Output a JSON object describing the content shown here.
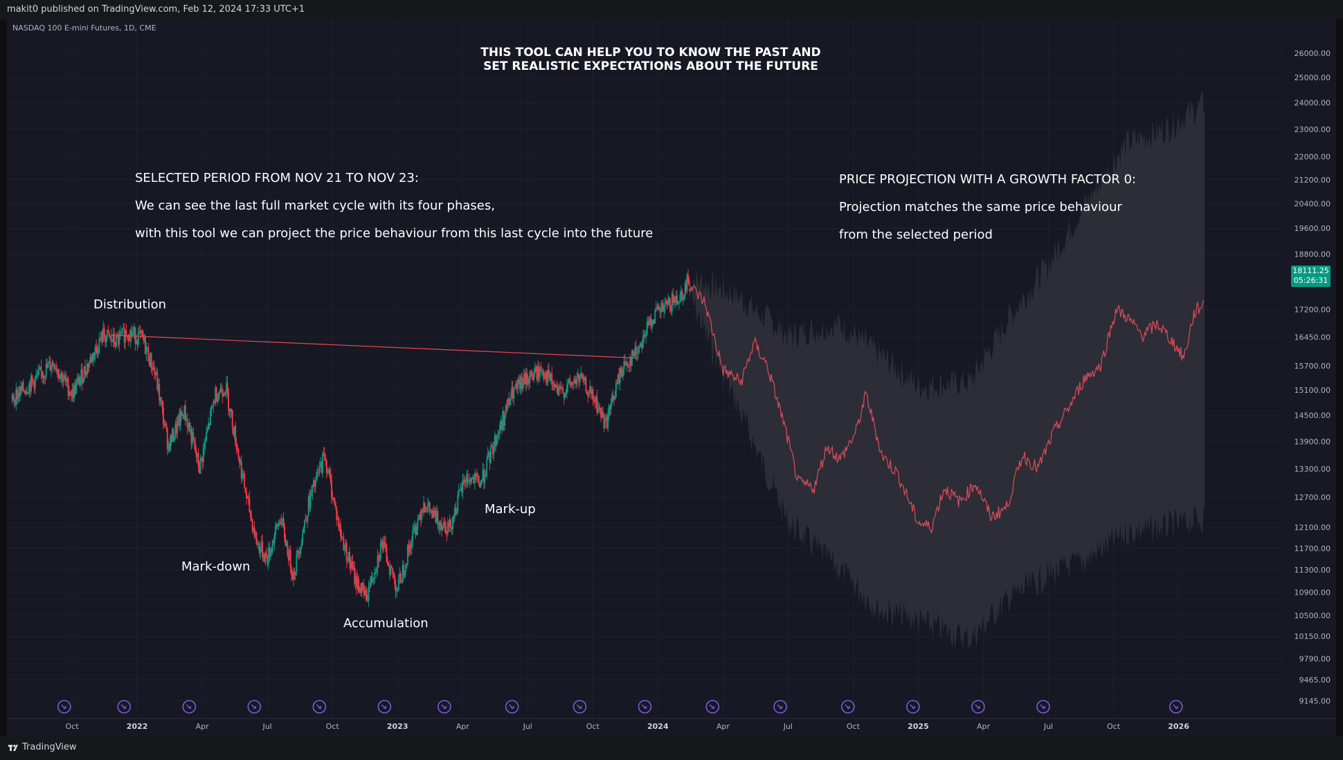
{
  "header": {
    "publisher": "makit0 published on TradingView.com, Feb 12, 2024 17:33 UTC+1"
  },
  "symbol": "NASDAQ 100 E-mini Futures, 1D, CME",
  "footer": {
    "brand": "TradingView"
  },
  "price_label": {
    "price": "18111.25",
    "countdown": "05:26:31"
  },
  "annotations": {
    "title_line1": "THIS TOOL CAN HELP YOU TO KNOW THE PAST AND",
    "title_line2": "SET REALISTIC EXPECTATIONS ABOUT THE FUTURE",
    "left_1": "SELECTED PERIOD FROM NOV 21 TO NOV 23:",
    "left_2": "We can see the last full market cycle with its four phases,",
    "left_3": "with this tool we can project the price behaviour from this last cycle into the future",
    "right_1": "PRICE PROJECTION WITH A GROWTH FACTOR 0:",
    "right_2": "Projection matches the same price behaviour",
    "right_3": "from the selected period",
    "phase_distribution": "Distribution",
    "phase_markdown": "Mark-down",
    "phase_accumulation": "Accumulation",
    "phase_markup": "Mark-up"
  },
  "colors": {
    "background": "#161823",
    "candle_up": "#089981",
    "candle_down": "#f23645",
    "projection_line": "#d24b5a",
    "projection_band": "#2f3038",
    "trendline": "#e0444f",
    "event_icon": "#7b5bd6"
  },
  "chart_data": {
    "type": "candlestick",
    "title": "NASDAQ 100 E-mini Futures, 1D, CME",
    "y_axis_ticks": [
      "26000.00",
      "25000.00",
      "24000.00",
      "23000.00",
      "22000.00",
      "21200.00",
      "20400.00",
      "19600.00",
      "18800.00",
      "17200.00",
      "16450.00",
      "15700.00",
      "15100.00",
      "14500.00",
      "13900.00",
      "13300.00",
      "12700.00",
      "12100.00",
      "11700.00",
      "11300.00",
      "10900.00",
      "10500.00",
      "10150.00",
      "9790.00",
      "9465.00",
      "9145.00"
    ],
    "y_scale": "log",
    "ylim": [
      9000,
      27000
    ],
    "x_axis_ticks": [
      {
        "label": "Oct",
        "t": 2021.75,
        "bold": false
      },
      {
        "label": "2022",
        "t": 2022.0,
        "bold": true
      },
      {
        "label": "Apr",
        "t": 2022.25,
        "bold": false
      },
      {
        "label": "Jul",
        "t": 2022.5,
        "bold": false
      },
      {
        "label": "Oct",
        "t": 2022.75,
        "bold": false
      },
      {
        "label": "2023",
        "t": 2023.0,
        "bold": true
      },
      {
        "label": "Apr",
        "t": 2023.25,
        "bold": false
      },
      {
        "label": "Jul",
        "t": 2023.5,
        "bold": false
      },
      {
        "label": "Oct",
        "t": 2023.75,
        "bold": false
      },
      {
        "label": "2024",
        "t": 2024.0,
        "bold": true
      },
      {
        "label": "Apr",
        "t": 2024.25,
        "bold": false
      },
      {
        "label": "Jul",
        "t": 2024.5,
        "bold": false
      },
      {
        "label": "Oct",
        "t": 2024.75,
        "bold": false
      },
      {
        "label": "2025",
        "t": 2025.0,
        "bold": true
      },
      {
        "label": "Apr",
        "t": 2025.25,
        "bold": false
      },
      {
        "label": "Jul",
        "t": 2025.5,
        "bold": false
      },
      {
        "label": "Oct",
        "t": 2025.75,
        "bold": false
      },
      {
        "label": "2026",
        "t": 2026.0,
        "bold": true
      }
    ],
    "x_range": [
      2021.5,
      2026.4
    ],
    "price_anchors": [
      [
        2021.52,
        14900
      ],
      [
        2021.6,
        15300
      ],
      [
        2021.68,
        15800
      ],
      [
        2021.75,
        15000
      ],
      [
        2021.8,
        15600
      ],
      [
        2021.87,
        16500
      ],
      [
        2021.92,
        16300
      ],
      [
        2021.96,
        16600
      ],
      [
        2022.02,
        16400
      ],
      [
        2022.07,
        15500
      ],
      [
        2022.12,
        13800
      ],
      [
        2022.18,
        14600
      ],
      [
        2022.2,
        14200
      ],
      [
        2022.24,
        13300
      ],
      [
        2022.3,
        15000
      ],
      [
        2022.34,
        15200
      ],
      [
        2022.38,
        13900
      ],
      [
        2022.42,
        12700
      ],
      [
        2022.46,
        11800
      ],
      [
        2022.5,
        11500
      ],
      [
        2022.55,
        12300
      ],
      [
        2022.6,
        11200
      ],
      [
        2022.66,
        12600
      ],
      [
        2022.72,
        13600
      ],
      [
        2022.78,
        12000
      ],
      [
        2022.84,
        11100
      ],
      [
        2022.88,
        10800
      ],
      [
        2022.94,
        11800
      ],
      [
        2023.0,
        10950
      ],
      [
        2023.05,
        11800
      ],
      [
        2023.1,
        12600
      ],
      [
        2023.14,
        12300
      ],
      [
        2023.2,
        12100
      ],
      [
        2023.26,
        13100
      ],
      [
        2023.32,
        13000
      ],
      [
        2023.38,
        14000
      ],
      [
        2023.44,
        15000
      ],
      [
        2023.5,
        15400
      ],
      [
        2023.56,
        15600
      ],
      [
        2023.62,
        15000
      ],
      [
        2023.7,
        15400
      ],
      [
        2023.76,
        14800
      ],
      [
        2023.8,
        14300
      ],
      [
        2023.86,
        15600
      ],
      [
        2023.92,
        16100
      ],
      [
        2023.98,
        17000
      ],
      [
        2024.04,
        17300
      ],
      [
        2024.1,
        17700
      ],
      [
        2024.12,
        18111
      ]
    ],
    "projection": {
      "start": 2024.12,
      "end": 2026.1,
      "center_anchors": [
        [
          2024.12,
          17900
        ],
        [
          2024.18,
          17400
        ],
        [
          2024.25,
          15600
        ],
        [
          2024.32,
          15300
        ],
        [
          2024.37,
          16300
        ],
        [
          2024.42,
          15700
        ],
        [
          2024.48,
          14400
        ],
        [
          2024.54,
          13000
        ],
        [
          2024.6,
          12900
        ],
        [
          2024.65,
          13800
        ],
        [
          2024.7,
          13500
        ],
        [
          2024.76,
          14100
        ],
        [
          2024.8,
          15000
        ],
        [
          2024.86,
          13600
        ],
        [
          2024.92,
          13200
        ],
        [
          2025.0,
          12200
        ],
        [
          2025.05,
          12100
        ],
        [
          2025.1,
          12900
        ],
        [
          2025.16,
          12600
        ],
        [
          2025.22,
          13000
        ],
        [
          2025.28,
          12300
        ],
        [
          2025.34,
          12500
        ],
        [
          2025.4,
          13600
        ],
        [
          2025.46,
          13300
        ],
        [
          2025.52,
          14100
        ],
        [
          2025.58,
          14700
        ],
        [
          2025.64,
          15400
        ],
        [
          2025.7,
          15700
        ],
        [
          2025.76,
          17200
        ],
        [
          2025.8,
          17000
        ],
        [
          2025.86,
          16500
        ],
        [
          2025.92,
          16800
        ],
        [
          2025.98,
          16300
        ],
        [
          2026.02,
          15900
        ],
        [
          2026.06,
          17100
        ],
        [
          2026.1,
          17400
        ]
      ],
      "upper_anchors": [
        [
          2024.12,
          18100
        ],
        [
          2024.3,
          17600
        ],
        [
          2024.5,
          16500
        ],
        [
          2024.7,
          16800
        ],
        [
          2024.85,
          16000
        ],
        [
          2025.0,
          15200
        ],
        [
          2025.2,
          15300
        ],
        [
          2025.35,
          17000
        ],
        [
          2025.5,
          18500
        ],
        [
          2025.65,
          20500
        ],
        [
          2025.8,
          22500
        ],
        [
          2025.95,
          23000
        ],
        [
          2026.1,
          24000
        ]
      ],
      "lower_anchors": [
        [
          2024.12,
          17600
        ],
        [
          2024.3,
          14800
        ],
        [
          2024.5,
          12200
        ],
        [
          2024.7,
          11300
        ],
        [
          2024.85,
          10600
        ],
        [
          2025.0,
          10400
        ],
        [
          2025.2,
          10100
        ],
        [
          2025.35,
          10800
        ],
        [
          2025.5,
          11200
        ],
        [
          2025.65,
          11500
        ],
        [
          2025.8,
          12000
        ],
        [
          2025.95,
          12100
        ],
        [
          2026.1,
          12300
        ]
      ]
    },
    "trendline": {
      "from": [
        2021.9,
        16500
      ],
      "to": [
        2023.92,
        15900
      ]
    },
    "event_markers_t": [
      2021.72,
      2021.95,
      2022.2,
      2022.45,
      2022.7,
      2022.95,
      2023.18,
      2023.44,
      2023.7,
      2023.95,
      2024.21,
      2024.47,
      2024.73,
      2024.98,
      2025.23,
      2025.48,
      2025.99
    ]
  }
}
